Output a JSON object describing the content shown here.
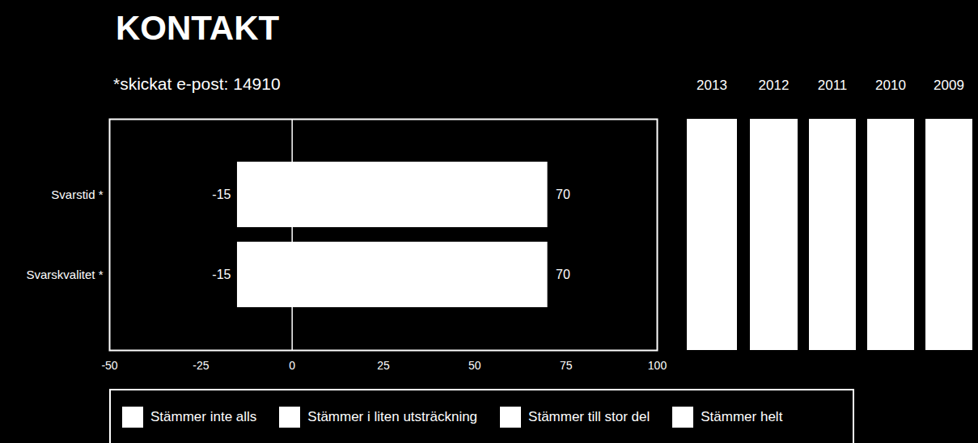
{
  "chart_data": {
    "type": "bar",
    "title": "KONTAKT",
    "subtitle": "*skickat e-post: 14910",
    "orientation": "horizontal",
    "categories": [
      "Svarstid *",
      "Svarskvalitet *"
    ],
    "low": [
      -15,
      -15
    ],
    "high": [
      70,
      70
    ],
    "color": "#ffffff",
    "data_labels": true,
    "xlim": [
      -50,
      100
    ],
    "xticks": [
      -50,
      -25,
      0,
      25,
      50,
      75,
      100
    ],
    "grid": false,
    "legend": "bottom",
    "legend_items": [
      {
        "name": "Stämmer inte alls",
        "color": "#ffffff"
      },
      {
        "name": "Stämmer i liten utsträckning",
        "color": "#ffffff"
      },
      {
        "name": "Stämmer till stor del",
        "color": "#ffffff"
      },
      {
        "name": "Stämmer helt",
        "color": "#ffffff"
      }
    ],
    "panels": [
      {
        "label": "2013",
        "color": "#ffffff"
      },
      {
        "label": "2012",
        "color": "#ffffff"
      },
      {
        "label": "2011",
        "color": "#ffffff"
      },
      {
        "label": "2010",
        "color": "#ffffff"
      },
      {
        "label": "2009",
        "color": "#ffffff"
      }
    ]
  }
}
